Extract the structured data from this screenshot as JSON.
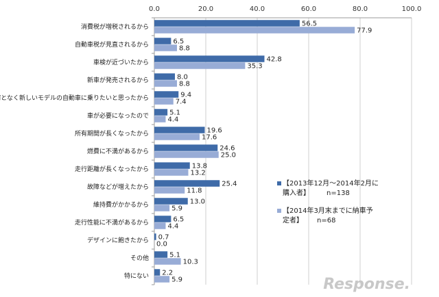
{
  "chart_data": {
    "type": "bar",
    "orientation": "horizontal",
    "categories": [
      "消費税が増税されるから",
      "自動車税が見直されるから",
      "車検が近づいたから",
      "新車が発売されるから",
      "何となく新しいモデルの自動車に乗りたいと思ったから",
      "車が必要になったので",
      "所有期間が長くなったから",
      "燃費に不満があるから",
      "走行距離が長くなったから",
      "故障などが増えたから",
      "維持費がかかるから",
      "走行性能に不満があるから",
      "デザインに飽きたから",
      "その他",
      "特にない"
    ],
    "series": [
      {
        "name": "【2013年12月～2014年2月に購入者】",
        "n_label": "n=138",
        "color": "#3f6ba8",
        "values": [
          56.5,
          6.5,
          42.8,
          8.0,
          9.4,
          5.1,
          19.6,
          24.6,
          13.8,
          25.4,
          13.0,
          6.5,
          0.7,
          5.1,
          2.2
        ]
      },
      {
        "name": "【2014年3月末までに納車予定者】",
        "n_label": "n=68",
        "color": "#98acd6",
        "values": [
          77.9,
          8.8,
          35.3,
          8.8,
          7.4,
          4.4,
          17.6,
          25.0,
          13.2,
          11.8,
          5.9,
          4.4,
          0.0,
          10.3,
          5.9
        ]
      }
    ],
    "xlim": [
      0,
      100
    ],
    "ticks": [
      "0.0",
      "20.0",
      "40.0",
      "60.0",
      "80.0",
      "100.0"
    ],
    "grid": true,
    "legend_position": "right",
    "legend": {
      "s1_line1": "【2013年12月～2014年2月に",
      "s1_line2": "購入者】",
      "s2_line1": "【2014年3月末までに納車予",
      "s2_line2": "定者】"
    },
    "watermark": "Response."
  }
}
